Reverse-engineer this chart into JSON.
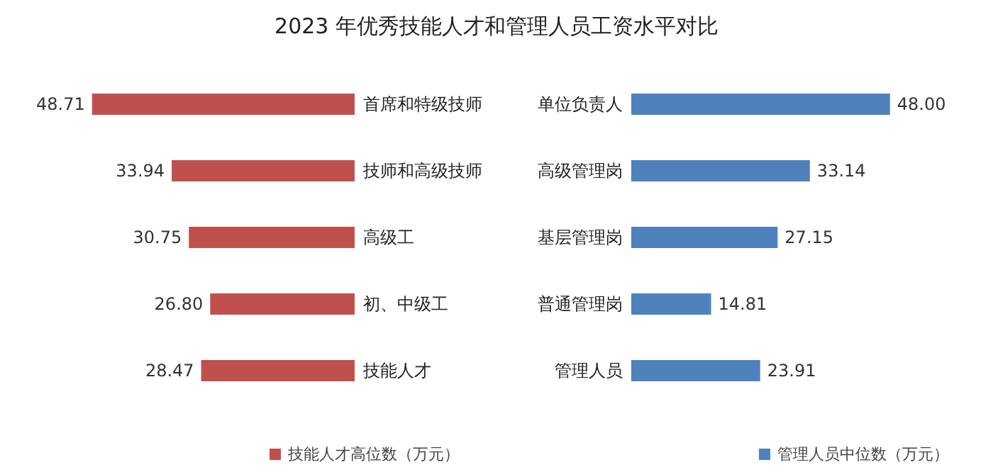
{
  "chart_data": [
    {
      "type": "bar",
      "orientation": "horizontal",
      "title": "2023 年优秀技能人才和管理人员工资水平对比",
      "categories": [
        "首席和特级技师",
        "技师和高级技师",
        "高级工",
        "初、中级工",
        "技能人才"
      ],
      "series": [
        {
          "name": "技能人才高位数（万元）",
          "color": "#c0504d",
          "values": [
            48.71,
            33.94,
            30.75,
            26.8,
            28.47
          ],
          "value_labels": [
            "48.71",
            "33.94",
            "30.75",
            "26.80",
            "28.47"
          ]
        }
      ],
      "legend": "bottom"
    },
    {
      "type": "bar",
      "orientation": "horizontal",
      "categories": [
        "单位负责人",
        "高级管理岗",
        "基层管理岗",
        "普通管理岗",
        "管理人员"
      ],
      "series": [
        {
          "name": "管理人员中位数（万元）",
          "color": "#4f81bd",
          "values": [
            48.0,
            33.14,
            27.15,
            14.81,
            23.91
          ],
          "value_labels": [
            "48.00",
            "33.14",
            "27.15",
            "14.81",
            "23.91"
          ]
        }
      ],
      "legend": "bottom"
    }
  ]
}
